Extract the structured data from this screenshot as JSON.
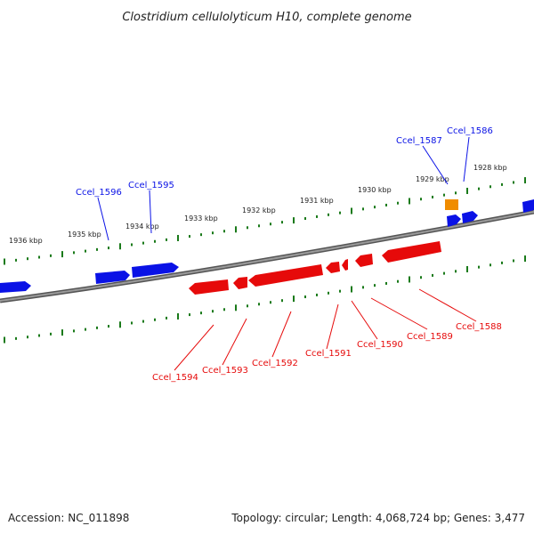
{
  "title": "Clostridium cellulolyticum H10, complete genome",
  "footer": {
    "accession": "Accession: NC_011898",
    "summary": "Topology: circular; Length: 4,068,724 bp; Genes: 3,477"
  },
  "ruler_labels": [
    "1936 kbp",
    "1935 kbp",
    "1934 kbp",
    "1933 kbp",
    "1932 kbp",
    "1931 kbp",
    "1930 kbp",
    "1929 kbp",
    "1928 kbp"
  ],
  "forward_labels": [
    "Ccel_1596",
    "Ccel_1595",
    "Ccel_1587",
    "Ccel_1586"
  ],
  "reverse_labels": [
    "Ccel_1594",
    "Ccel_1593",
    "Ccel_1592",
    "Ccel_1591",
    "Ccel_1590",
    "Ccel_1589",
    "Ccel_1588"
  ],
  "colors": {
    "forward": "#0a12e6",
    "reverse": "#e60a0a",
    "highlight": "#f08c00",
    "backbone": "#808080",
    "ticks": "#1a7a1a"
  }
}
